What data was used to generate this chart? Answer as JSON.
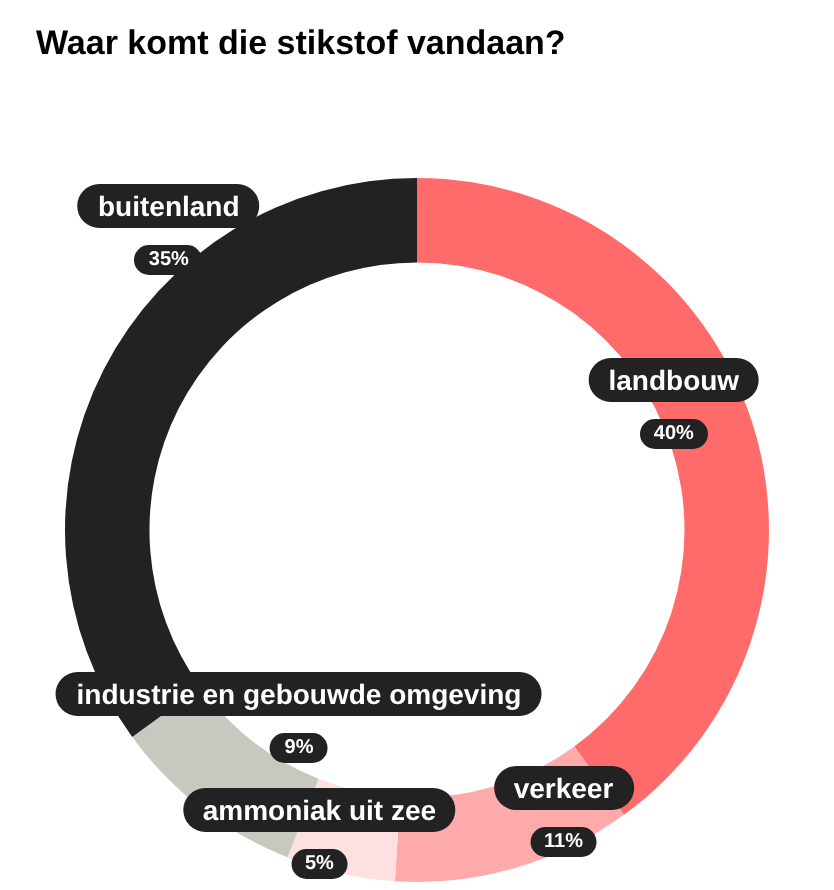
{
  "chart_data": {
    "type": "donut",
    "title": "Waar komt die stikstof vandaan?",
    "categories": [
      "landbouw",
      "verkeer",
      "ammoniak uit zee",
      "industrie en gebouwde omgeving",
      "buitenland"
    ],
    "values": [
      40,
      11,
      5,
      9,
      35
    ],
    "value_labels": [
      "40%",
      "11%",
      "5%",
      "9%",
      "35%"
    ],
    "colors": [
      "#ff6b6b",
      "#ffaaaa",
      "#ffe0e0",
      "#c8c8c0",
      "#222222"
    ]
  }
}
